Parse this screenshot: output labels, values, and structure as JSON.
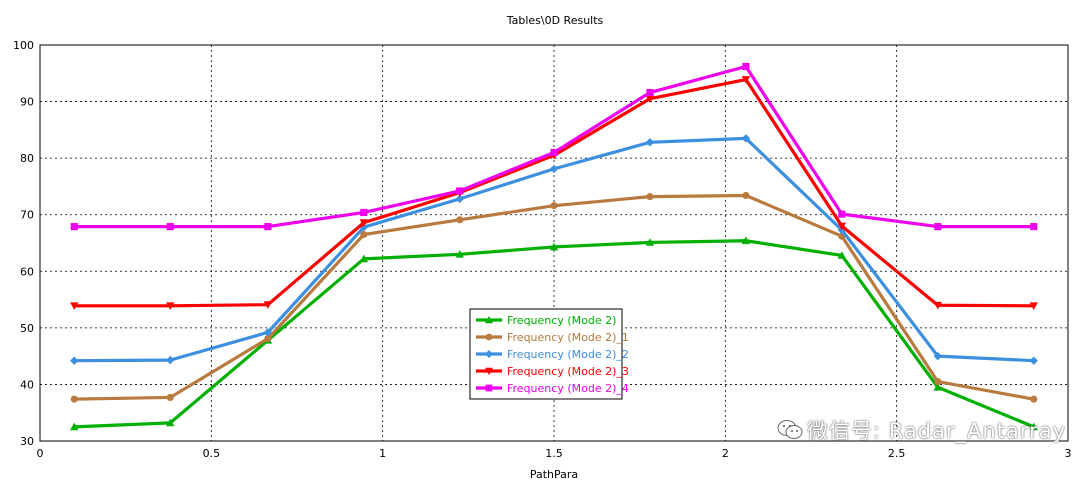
{
  "chart_data": {
    "type": "line",
    "title": "Tables\\0D Results",
    "xlabel": "PathPara",
    "ylabel": "",
    "xlim": [
      0,
      3
    ],
    "ylim": [
      30,
      100
    ],
    "xticks": [
      "0",
      "0.5",
      "1",
      "1.5",
      "2",
      "2.5",
      "3"
    ],
    "yticks": [
      "30",
      "40",
      "50",
      "60",
      "70",
      "80",
      "90",
      "100"
    ],
    "grid": true,
    "legend_position": "bottom-center",
    "x": [
      0.1,
      0.38,
      0.665,
      0.945,
      1.225,
      1.5,
      1.78,
      2.06,
      2.34,
      2.62,
      2.9
    ],
    "series": [
      {
        "name": "Frequency (Mode 2)",
        "color": "#00b000",
        "marker": "triangle-up",
        "values": [
          32.5,
          33.2,
          47.8,
          62.2,
          63.0,
          64.3,
          65.1,
          65.4,
          62.8,
          39.5,
          32.5
        ]
      },
      {
        "name": "Frequency (Mode 2)_1",
        "color": "#b87a3e",
        "marker": "circle",
        "values": [
          37.4,
          37.7,
          48.1,
          66.5,
          69.1,
          71.6,
          73.2,
          73.4,
          66.2,
          40.5,
          37.4
        ]
      },
      {
        "name": "Frequency (Mode 2)_2",
        "color": "#3d8fe0",
        "marker": "diamond",
        "values": [
          44.2,
          44.3,
          49.2,
          67.8,
          72.8,
          78.1,
          82.8,
          83.5,
          67.3,
          45.0,
          44.2
        ]
      },
      {
        "name": "Frequency (Mode 2)_3",
        "color": "#ff0000",
        "marker": "triangle-down",
        "values": [
          53.9,
          53.9,
          54.1,
          68.6,
          73.9,
          80.5,
          90.5,
          93.9,
          68.0,
          54.0,
          53.9
        ]
      },
      {
        "name": "Frequency (Mode 2)_4",
        "color": "#ee00ee",
        "marker": "square",
        "values": [
          67.9,
          67.9,
          67.9,
          70.4,
          74.2,
          81.0,
          91.6,
          96.2,
          70.1,
          67.9,
          67.9
        ]
      }
    ]
  },
  "watermark": {
    "text": "微信号: Radar_Antarray",
    "icon": "wechat-icon"
  }
}
